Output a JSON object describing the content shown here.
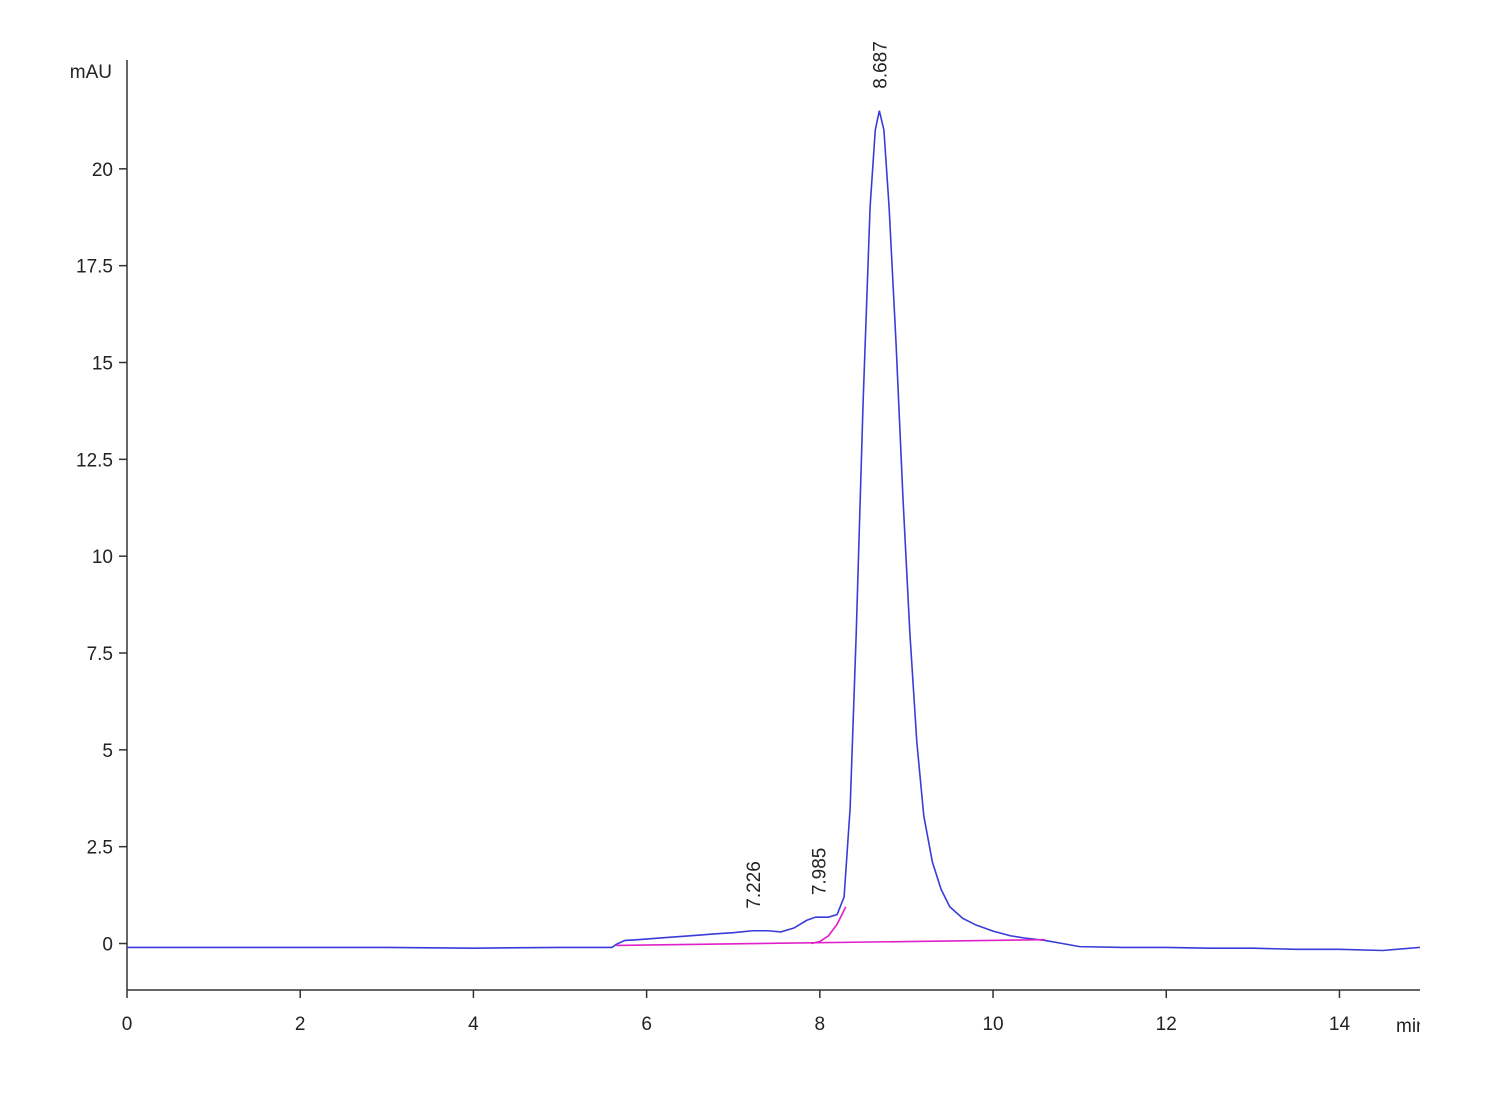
{
  "chart_data": {
    "type": "line",
    "y_label": "mAU",
    "x_label": "min",
    "xlim": [
      0,
      14.93
    ],
    "ylim": [
      -1.2,
      22.5
    ],
    "xticks": [
      0,
      2,
      4,
      6,
      8,
      10,
      12,
      14
    ],
    "yticks": [
      0,
      2.5,
      5,
      7.5,
      10,
      12.5,
      15,
      17.5,
      20
    ],
    "peaks": [
      7.226,
      7.985,
      8.687
    ],
    "series": [
      {
        "color": "#3b3bd9",
        "x": [
          0,
          1,
          2,
          3,
          4,
          5,
          5.6,
          5.65,
          5.75,
          5.9,
          6.2,
          6.5,
          6.8,
          7.0,
          7.226,
          7.4,
          7.55,
          7.7,
          7.85,
          7.95,
          8.1,
          8.2,
          8.28,
          8.35,
          8.42,
          8.5,
          8.58,
          8.64,
          8.687,
          8.74,
          8.8,
          8.88,
          8.96,
          9.04,
          9.12,
          9.2,
          9.3,
          9.4,
          9.5,
          9.65,
          9.8,
          10.0,
          10.2,
          10.4,
          10.6,
          10.8,
          11.0,
          11.5,
          12.0,
          12.5,
          13.0,
          13.5,
          14.0,
          14.5,
          14.93
        ],
        "values": [
          -0.1,
          -0.1,
          -0.1,
          -0.1,
          -0.12,
          -0.1,
          -0.1,
          -0.02,
          0.08,
          0.1,
          0.15,
          0.2,
          0.25,
          0.28,
          0.33,
          0.33,
          0.3,
          0.4,
          0.6,
          0.68,
          0.68,
          0.75,
          1.2,
          3.5,
          8.0,
          14.0,
          19.0,
          21.0,
          21.5,
          21.0,
          19.0,
          15.5,
          11.5,
          8.0,
          5.2,
          3.3,
          2.1,
          1.4,
          0.95,
          0.65,
          0.48,
          0.32,
          0.2,
          0.13,
          0.08,
          0.0,
          -0.08,
          -0.1,
          -0.1,
          -0.12,
          -0.12,
          -0.15,
          -0.15,
          -0.18,
          -0.1
        ]
      },
      {
        "color": "#e020c8",
        "x": [
          5.65,
          10.6
        ],
        "values": [
          -0.05,
          0.1
        ]
      },
      {
        "color": "#e020c8",
        "x": [
          7.9,
          8.0,
          8.1,
          8.2,
          8.3
        ],
        "values": [
          0.0,
          0.05,
          0.2,
          0.5,
          0.95
        ]
      }
    ]
  }
}
